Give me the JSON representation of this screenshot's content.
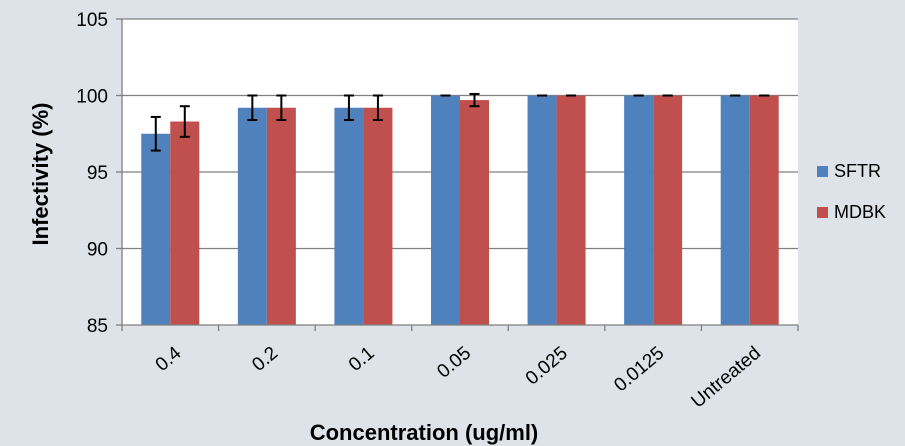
{
  "chart_data": {
    "type": "bar",
    "xlabel": "Concentration (ug/ml)",
    "ylabel": "Infectivity (%)",
    "ylim": [
      85,
      105
    ],
    "yticks": [
      85,
      90,
      95,
      100,
      105
    ],
    "categories": [
      "0.4",
      "0.2",
      "0.1",
      "0.05",
      "0.025",
      "0.0125",
      "Untreated"
    ],
    "series": [
      {
        "name": "SFTR",
        "color": "#4f81bd",
        "values": [
          97.5,
          99.2,
          99.2,
          100,
          100,
          100,
          100
        ],
        "errors": [
          1.1,
          0.8,
          0.8,
          0,
          0,
          0,
          0
        ]
      },
      {
        "name": "MDBK",
        "color": "#c0504d",
        "values": [
          98.3,
          99.2,
          99.2,
          99.7,
          100,
          100,
          100
        ],
        "errors": [
          1.0,
          0.8,
          0.8,
          0.4,
          0,
          0,
          0
        ]
      }
    ],
    "grid": "horizontal",
    "legend_position": "right",
    "background": "#dde3e9",
    "plot_background": "#ffffff",
    "gridline_color": "#7f7f7f"
  }
}
